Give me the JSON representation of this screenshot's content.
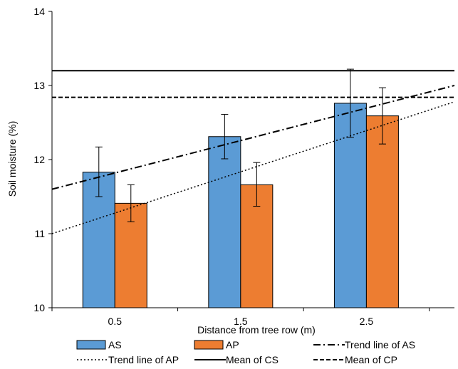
{
  "chart_data": {
    "type": "bar",
    "xlabel": "Distance from tree row (m)",
    "ylabel": "Soil moisture (%)",
    "ylim": [
      10,
      14
    ],
    "yticks": [
      10,
      11,
      12,
      13,
      14
    ],
    "categories": [
      "0.5",
      "1.5",
      "2.5"
    ],
    "grid": false,
    "legend_position": "bottom",
    "series": [
      {
        "name": "AS",
        "color": "#5b9bd5",
        "values": [
          11.83,
          12.31,
          12.76
        ],
        "error": [
          [
            11.5,
            12.17
          ],
          [
            12.01,
            12.61
          ],
          [
            12.3,
            13.22
          ]
        ]
      },
      {
        "name": "AP",
        "color": "#ed7d31",
        "values": [
          11.41,
          11.66,
          12.59
        ],
        "error": [
          [
            11.16,
            11.66
          ],
          [
            11.37,
            11.96
          ],
          [
            12.21,
            12.97
          ]
        ]
      }
    ],
    "lines": [
      {
        "name": "Trend line of AS",
        "style": "dash-dot",
        "x": [
          0,
          3.2
        ],
        "y": [
          11.6,
          13.0
        ]
      },
      {
        "name": "Trend line of AP",
        "style": "dotted",
        "x": [
          0,
          3.2
        ],
        "y": [
          11.0,
          12.78
        ]
      },
      {
        "name": "Mean of CS",
        "style": "solid",
        "y": 13.2
      },
      {
        "name": "Mean of CP",
        "style": "dashed",
        "y": 12.84
      }
    ]
  }
}
